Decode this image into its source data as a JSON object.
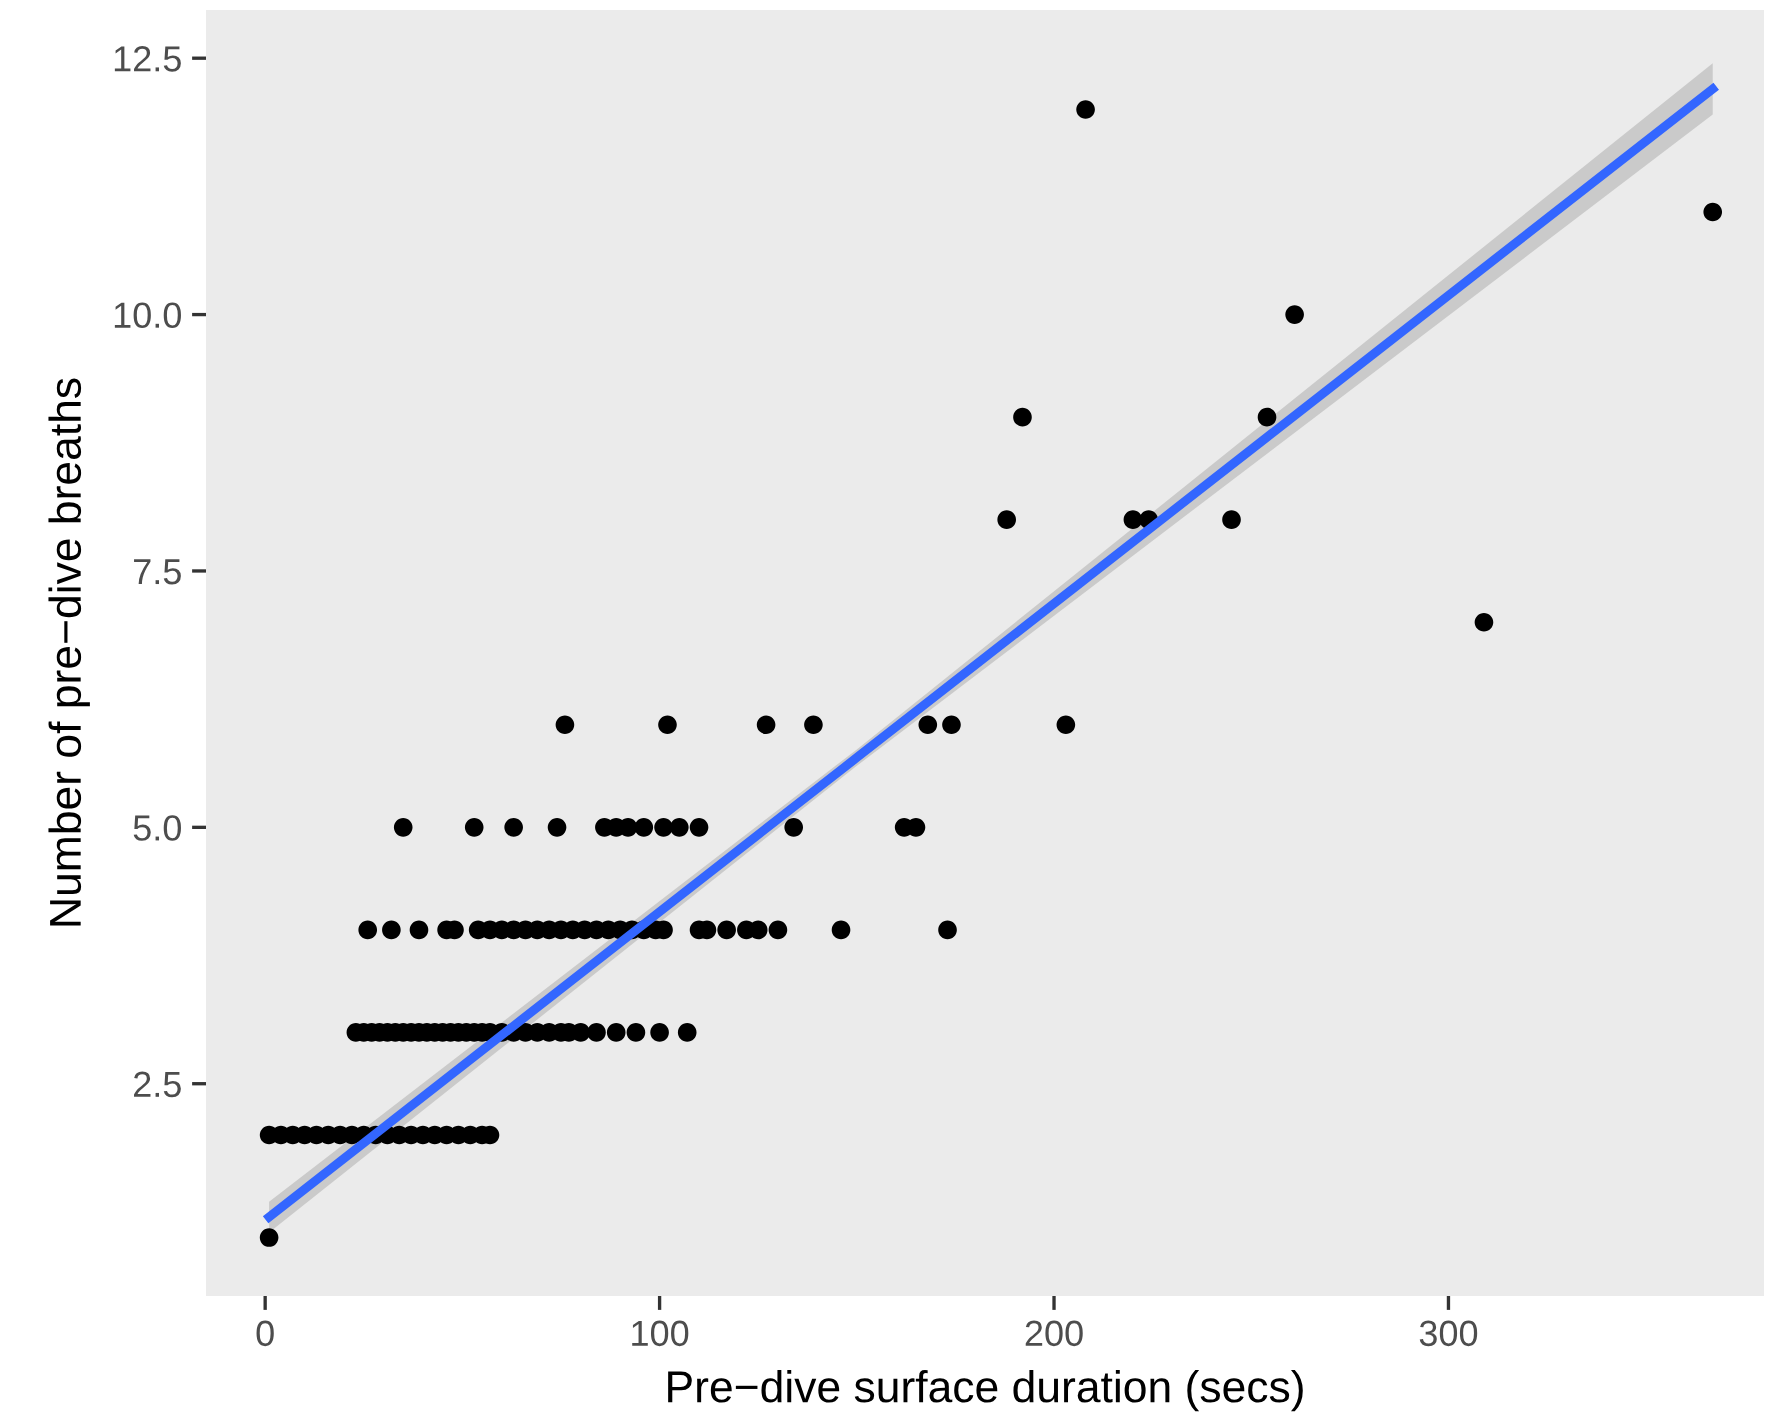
{
  "chart_data": {
    "type": "scatter",
    "xlabel": "Pre−dive surface duration (secs)",
    "ylabel": "Number of pre−dive breaths",
    "xlim": [
      -15,
      380
    ],
    "ylim": [
      0.43,
      12.97
    ],
    "xticks": [
      0,
      100,
      200,
      300
    ],
    "yticks": [
      {
        "value": 2.5,
        "label": "2.5"
      },
      {
        "value": 5,
        "label": "5.0"
      },
      {
        "value": 7.5,
        "label": "7.5"
      },
      {
        "value": 10,
        "label": "10.0"
      },
      {
        "value": 12.5,
        "label": "12.5"
      }
    ],
    "grid": false,
    "legend": false,
    "series": [
      {
        "marker": "circle",
        "color": "#000000",
        "x": [
          1,
          1,
          4,
          7,
          10,
          13,
          16,
          19,
          22,
          25,
          28,
          31,
          34,
          37,
          40,
          43,
          46,
          49,
          52,
          55,
          57,
          23,
          25,
          27,
          29,
          31,
          33,
          35,
          37,
          39,
          41,
          43,
          45,
          47,
          49,
          51,
          53,
          55,
          57,
          60,
          63,
          66,
          69,
          72,
          75,
          77,
          80,
          84,
          89,
          94,
          100,
          107,
          26,
          32,
          39,
          46,
          48,
          54,
          57,
          60,
          63,
          66,
          69,
          72,
          75,
          78,
          81,
          84,
          87,
          90,
          93,
          96,
          99,
          101,
          110,
          112,
          117,
          122,
          125,
          130,
          146,
          173,
          35,
          53,
          63,
          74,
          86,
          89,
          92,
          96,
          101,
          105,
          110,
          134,
          162,
          165,
          76,
          102,
          127,
          139,
          168,
          174,
          203,
          208,
          367,
          261,
          192,
          254,
          188,
          220,
          224,
          245,
          309
        ],
        "values": [
          1,
          2,
          2,
          2,
          2,
          2,
          2,
          2,
          2,
          2,
          2,
          2,
          2,
          2,
          2,
          2,
          2,
          2,
          2,
          2,
          2,
          3,
          3,
          3,
          3,
          3,
          3,
          3,
          3,
          3,
          3,
          3,
          3,
          3,
          3,
          3,
          3,
          3,
          3,
          3,
          3,
          3,
          3,
          3,
          3,
          3,
          3,
          3,
          3,
          3,
          3,
          3,
          4,
          4,
          4,
          4,
          4,
          4,
          4,
          4,
          4,
          4,
          4,
          4,
          4,
          4,
          4,
          4,
          4,
          4,
          4,
          4,
          4,
          4,
          4,
          4,
          4,
          4,
          4,
          4,
          4,
          4,
          5,
          5,
          5,
          5,
          5,
          5,
          5,
          5,
          5,
          5,
          5,
          5,
          5,
          5,
          6,
          6,
          6,
          6,
          6,
          6,
          6,
          12,
          11,
          10,
          9,
          9,
          8,
          8,
          8,
          8,
          7
        ]
      },
      {
        "type": "line",
        "color": "#3366ff",
        "x": [
          1,
          150,
          367
        ],
        "values": [
          1.2,
          5.68,
          12.2
        ],
        "lower": [
          1.05,
          5.6,
          11.95
        ],
        "upper": [
          1.35,
          5.76,
          12.45
        ]
      }
    ]
  }
}
